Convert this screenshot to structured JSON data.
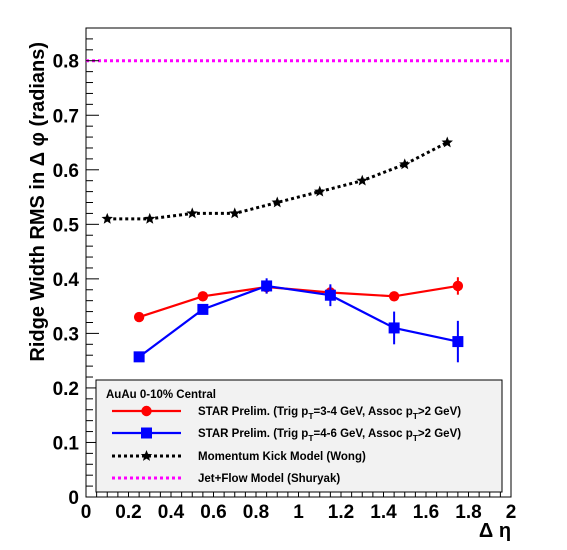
{
  "chart_data": {
    "type": "line",
    "title": "",
    "xlabel": "Δ η",
    "ylabel": "Ridge Width RMS in Δ φ (radians)",
    "xlim": [
      0,
      2
    ],
    "ylim": [
      0,
      0.86
    ],
    "x_ticks": [
      "0",
      "0.2",
      "0.4",
      "0.6",
      "0.8",
      "1",
      "1.2",
      "1.4",
      "1.6",
      "1.8",
      "2"
    ],
    "y_ticks": [
      "0",
      "0.1",
      "0.2",
      "0.3",
      "0.4",
      "0.5",
      "0.6",
      "0.7",
      "0.8"
    ],
    "grid": false,
    "legend_placement": "bottom",
    "legend_header": "AuAu 0-10% Central",
    "series": [
      {
        "name": "STAR Prelim. (Trig pT=3-4 GeV, Assoc pT>2 GeV)",
        "legend": {
          "pre": "STAR Prelim. (Trig p",
          "sub1": "T",
          "mid": "=3-4 GeV, Assoc p",
          "sub2": "T",
          "post": ">2 GeV)"
        },
        "color": "#ff0000",
        "marker": "circle",
        "line": "solid",
        "x": [
          0.25,
          0.55,
          0.85,
          1.15,
          1.45,
          1.75
        ],
        "y": [
          0.33,
          0.368,
          0.385,
          0.375,
          0.368,
          0.387
        ],
        "yerr": [
          0.004,
          0.006,
          0.012,
          0.012,
          0.006,
          0.016
        ]
      },
      {
        "name": "STAR Prelim. (Trig pT=4-6 GeV, Assoc pT>2 GeV)",
        "legend": {
          "pre": "STAR Prelim. (Trig p",
          "sub1": "T",
          "mid": "=4-6 GeV, Assoc p",
          "sub2": "T",
          "post": ">2 GeV)"
        },
        "color": "#0000ff",
        "marker": "square",
        "line": "solid",
        "x": [
          0.25,
          0.55,
          0.85,
          1.15,
          1.45,
          1.75
        ],
        "y": [
          0.257,
          0.344,
          0.387,
          0.37,
          0.31,
          0.285
        ],
        "yerr": [
          0.006,
          0.008,
          0.014,
          0.02,
          0.03,
          0.038
        ]
      },
      {
        "name": "Momentum Kick Model (Wong)",
        "color": "#000000",
        "marker": "star",
        "line": "dotted",
        "x": [
          0.1,
          0.3,
          0.5,
          0.7,
          0.9,
          1.1,
          1.3,
          1.5,
          1.7
        ],
        "y": [
          0.51,
          0.51,
          0.52,
          0.52,
          0.54,
          0.56,
          0.58,
          0.61,
          0.65
        ]
      },
      {
        "name": "Jet+Flow Model (Shuryak)",
        "color": "#ff00ff",
        "marker": "none",
        "line": "dotted",
        "x": [
          0,
          2
        ],
        "y": [
          0.8,
          0.8
        ]
      }
    ]
  }
}
